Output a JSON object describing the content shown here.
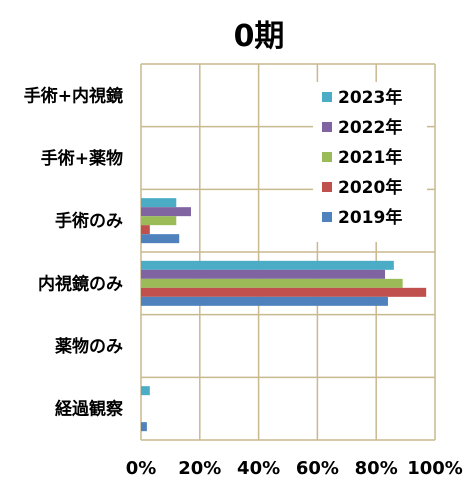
{
  "chart_data": {
    "type": "bar",
    "orientation": "horizontal",
    "title": "0期",
    "categories": [
      "手術+内視鏡",
      "手術+薬物",
      "手術のみ",
      "内視鏡のみ",
      "薬物のみ",
      "経過観察"
    ],
    "xlim": [
      0,
      1
    ],
    "xticks": [
      "0%",
      "20%",
      "40%",
      "60%",
      "80%",
      "100%"
    ],
    "grid": true,
    "legend_position": "top-right",
    "series": [
      {
        "name": "2023年",
        "color": "#4BACC6",
        "values": [
          0,
          0,
          0.12,
          0.86,
          0,
          0.03
        ]
      },
      {
        "name": "2022年",
        "color": "#8064A2",
        "values": [
          0,
          0,
          0.17,
          0.83,
          0,
          0
        ]
      },
      {
        "name": "2021年",
        "color": "#9BBB59",
        "values": [
          0,
          0,
          0.12,
          0.89,
          0,
          0
        ]
      },
      {
        "name": "2020年",
        "color": "#C0504D",
        "values": [
          0,
          0,
          0.03,
          0.97,
          0,
          0
        ]
      },
      {
        "name": "2019年",
        "color": "#4F81BD",
        "values": [
          0,
          0,
          0.13,
          0.84,
          0,
          0.02
        ]
      }
    ]
  }
}
